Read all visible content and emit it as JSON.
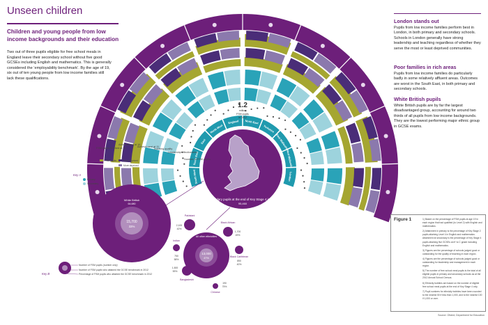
{
  "title": "Unseen children",
  "subtitle": "Children and young people from low income backgrounds and their education",
  "intro": "Two out of three pupils eligible for free school meals in England leave their secondary school without five good GCSEs including English and mathematics. This is generally considered the ‘employability benchmark’. By the age of 19, six out of ten young people from low income families still lack these qualifications.",
  "side": [
    {
      "heading": "London stands out",
      "text": "Pupils from low income families perform best in London, in both primary and secondary schools. Schools in London generally have strong leadership and teaching regardless of whether they serve the most or least deprived communities."
    },
    {
      "heading": "Poor families in rich areas",
      "text": "Pupils from low income families do particularly badly in some relatively affluent areas. Outcomes are worst in the South East, in both primary and secondary schools."
    },
    {
      "heading": "White British pupils",
      "text": "White British pupils are by far the largest disadvantaged group, accounting for around two thirds of all pupils from low income backgrounds. They are the lowest performing major ethnic group in GCSE exams."
    }
  ],
  "centre": {
    "value": "1.2",
    "unit": "million",
    "line1": "FSM pupils",
    "line2": "in 2012"
  },
  "regions": [
    "South West",
    "South East",
    "East of England",
    "North West",
    "England",
    "North East",
    "Yorkshire and the Humber",
    "East Midlands",
    "West Midlands",
    "London"
  ],
  "ring_labels": [
    "FSM pupils finished at 19",
    "Achievement at 16",
    "Achievement at 11",
    "Teaching quality",
    "Leadership effectiveness",
    "Number of FSM pupils"
  ],
  "map_caption": "Secondary pupils at the end of Key Stage 4 in 2012",
  "map_caption_value": "95,460",
  "bubble_key": [
    "Number of FSM pupils (number only)",
    "Number of FSM pupils who attained the GCSE benchmark in 2012",
    "Percentage of FSM pupils who attained the GCSE benchmark in 2012"
  ],
  "key_a_label": "Key A",
  "key_b_label": "Key B",
  "ethnic": [
    {
      "name": "White British",
      "big": "64,680",
      "value": "15,700",
      "pct": "33%"
    },
    {
      "name": "All other ethnicities",
      "value": "13,000",
      "pct": "47%"
    },
    {
      "name": "Pakistani",
      "value": "2,100",
      "pct": "42%"
    },
    {
      "name": "Black African",
      "value": "1,700",
      "pct": "49%"
    },
    {
      "name": "Indian",
      "value": "750",
      "pct": "58%"
    },
    {
      "name": "Black Caribbean",
      "value": "850",
      "pct": "40%"
    },
    {
      "name": "Bangladeshi",
      "value": "1,500",
      "pct": "59%"
    },
    {
      "name": "Chinese",
      "value": "190",
      "pct": "75%"
    }
  ],
  "figure": {
    "label": "Figure 1",
    "notes": [
      "1) Based on the percentage of FSM pupils at age 19 in each region that had qualified (to Level 2) with English and mathematics.",
      "2) Attainment in primary is the percentage of Key Stage 2 pupils attaining Level 4 in English and mathematics. Attainment at secondary is the percentage of Key Stage 4 pupils attaining five GCSEs at A* to C grade including English and mathematics.",
      "3) Figures are the percentage of schools judged good or outstanding for the quality of teaching in each region.",
      "4) Figures are the percentage of schools judged good or outstanding for leadership and management in each region.",
      "5) The number of free school meal pupils is the total of all eligible pupils in primary and secondary schools as at the 2012 Annual School Census.",
      "6) Ethnicity bubbles are based on the number of eligible free school meal pupils at the end of Key Stage 4 only.",
      "7) Pupil numbers for ethnicity bubbles have been rounded to the nearest 50 if less than 1,000, and to the nearest 100 if 1,000 or over."
    ]
  },
  "source": "Source: Ofsted; Department for Education",
  "colors": {
    "purple": "#6d1f7a",
    "dark": "#4a2d78",
    "mauve": "#8b79ad",
    "olive": "#a5a631",
    "teal": "#2aa3b8",
    "lightteal": "#9dd3dd",
    "lilac": "#c8a3cf"
  },
  "legend": [
    "FSM pupils",
    "Less deprived",
    "More deprived",
    "Primary",
    "Secondary"
  ]
}
